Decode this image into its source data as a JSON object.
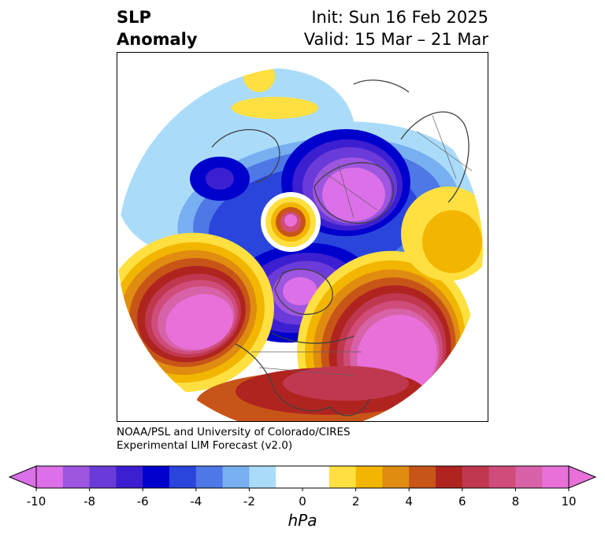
{
  "title": {
    "line1": "SLP",
    "line2": "Anomaly",
    "init": "Init: Sun 16 Feb 2025",
    "valid": "Valid: 15 Mar – 21 Mar"
  },
  "credit": {
    "line1": "NOAA/PSL and University of Colorado/CIRES",
    "line2": "Experimental LIM Forecast (v2.0)"
  },
  "colorbar": {
    "unit": "hPa",
    "ticks": [
      "-10",
      "-8",
      "-6",
      "-4",
      "-2",
      "0",
      "2",
      "4",
      "6",
      "8",
      "10"
    ],
    "colors": [
      "#db70e8",
      "#9e56e0",
      "#6a3bd8",
      "#3c1fd0",
      "#0000cc",
      "#2a45dc",
      "#4d78e6",
      "#78aff0",
      "#aadcfa",
      "#ffffff",
      "#ffffff",
      "#ffe040",
      "#f2b600",
      "#e08c10",
      "#c85518",
      "#b02420",
      "#c03850",
      "#d04c7a",
      "#d862a8",
      "#e870d8"
    ],
    "under_color": "#db70e8",
    "over_color": "#e870d8"
  },
  "map": {
    "projection": "north polar stereographic",
    "field": "sea level pressure anomaly"
  }
}
